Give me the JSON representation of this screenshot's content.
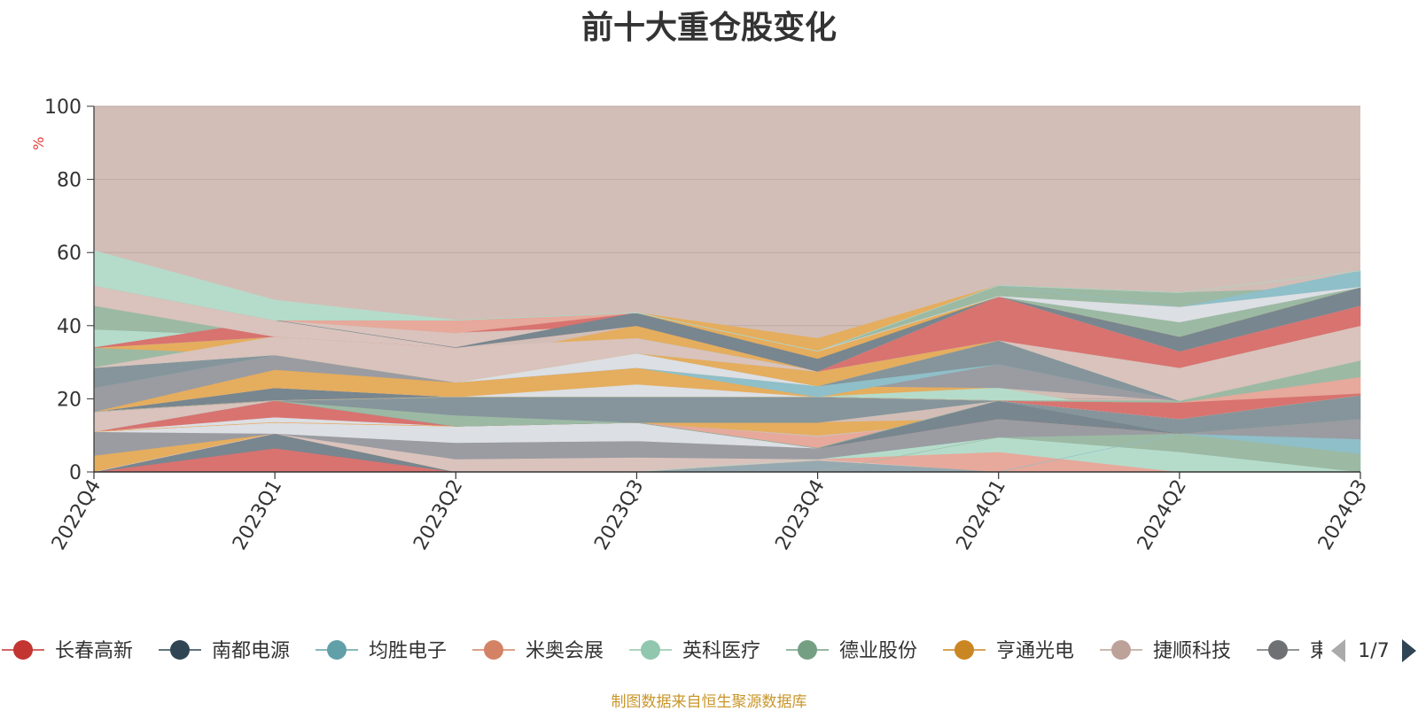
{
  "source_note": "制图数据来自恒生聚源数据库",
  "colors": {
    "background_fill": "#d2beb7",
    "axis": "#333333",
    "grid": "#bfaaa4",
    "ylabel": "#e53935",
    "legend_text": "#333333",
    "pager_active": "#2f4554",
    "pager_inactive": "#aaaaaa"
  },
  "legend": {
    "page": "1/7",
    "items": [
      {
        "name": "长春高新",
        "color": "#c23531"
      },
      {
        "name": "南都电源",
        "color": "#2f4554"
      },
      {
        "name": "均胜电子",
        "color": "#61a0a8"
      },
      {
        "name": "米奥会展",
        "color": "#d48265"
      },
      {
        "name": "英科医疗",
        "color": "#91c7ae"
      },
      {
        "name": "德业股份",
        "color": "#749f83"
      },
      {
        "name": "亨通光电",
        "color": "#ca8622"
      },
      {
        "name": "捷顺科技",
        "color": "#bda29a"
      },
      {
        "name": "東",
        "color": "#6e7074"
      }
    ]
  },
  "chart_data": {
    "type": "area",
    "title": "前十大重仓股变化",
    "ylabel": "%",
    "xlabel": "",
    "categories": [
      "2022Q4",
      "2023Q1",
      "2023Q2",
      "2023Q3",
      "2023Q4",
      "2024Q1",
      "2024Q2",
      "2024Q3"
    ],
    "ylim": [
      0,
      100
    ],
    "yticks": [
      0,
      20,
      40,
      60,
      80,
      100
    ],
    "grid": true,
    "legend_position": "bottom",
    "layers": [
      {
        "color": "#d87370",
        "lower": [
          0,
          0,
          0,
          0,
          0,
          0,
          0,
          0
        ],
        "upper": [
          0,
          6.5,
          0,
          0,
          0,
          0,
          0,
          0
        ]
      },
      {
        "color": "#78868f",
        "lower": [
          0,
          6.5,
          0,
          0,
          0,
          0,
          0,
          0
        ],
        "upper": [
          0,
          10.5,
          0,
          0,
          0,
          0,
          0,
          0
        ]
      },
      {
        "color": "#e5ad5e",
        "lower": [
          0,
          10.5,
          0,
          0,
          0,
          0,
          0,
          0
        ],
        "upper": [
          4.5,
          10.5,
          0,
          0,
          0,
          0,
          0,
          0
        ]
      },
      {
        "color": "#d9c3bc",
        "lower": [
          0,
          10.5,
          0,
          0,
          0,
          0,
          0,
          0
        ],
        "upper": [
          0,
          10.5,
          3.5,
          4,
          3.5,
          0,
          0,
          0
        ]
      },
      {
        "color": "#97a9b0",
        "lower": [
          0,
          0,
          0,
          0,
          0,
          0,
          0,
          0
        ],
        "upper": [
          0,
          0,
          0,
          0,
          3,
          0,
          0,
          0
        ]
      },
      {
        "color": "#e6a99b",
        "lower": [
          0,
          0,
          0,
          0,
          3.5,
          0,
          0,
          0
        ],
        "upper": [
          0,
          0,
          0,
          0,
          3.5,
          5.5,
          0,
          0
        ]
      },
      {
        "color": "#b5dccb",
        "lower": [
          0,
          0,
          0,
          0,
          3.5,
          5.5,
          0,
          0
        ],
        "upper": [
          0,
          0,
          0,
          0,
          3.5,
          9.5,
          10.5,
          0
        ]
      },
      {
        "color": "#9cb9a4",
        "lower": [
          0,
          0,
          0,
          0,
          0,
          9.5,
          5.5,
          0
        ],
        "upper": [
          0,
          0,
          0,
          0,
          0,
          9.5,
          10.5,
          5
        ]
      },
      {
        "color": "#8fbfc8",
        "lower": [
          0,
          0,
          0,
          0,
          0,
          0,
          10.5,
          5
        ],
        "upper": [
          0,
          0,
          0,
          0,
          0,
          0,
          10.5,
          9
        ]
      },
      {
        "color": "#9a9ca2",
        "lower": [
          4.5,
          10.5,
          3.5,
          4,
          3.5,
          9.5,
          10.5,
          9
        ],
        "upper": [
          11,
          10.5,
          8,
          8.5,
          6.5,
          14.5,
          10.5,
          14.5
        ]
      },
      {
        "color": "#dcdfe3",
        "lower": [
          11,
          10.5,
          8,
          8.5,
          6.5,
          14.5,
          10.5,
          14.5
        ],
        "upper": [
          11,
          15,
          12.5,
          13.5,
          6.5,
          14.5,
          10.5,
          14.5
        ]
      },
      {
        "color": "#d87370",
        "lower": [
          11,
          15,
          12.5,
          13.5,
          6.5,
          14.5,
          10.5,
          14.5
        ],
        "upper": [
          11,
          19.5,
          12.5,
          13.5,
          6.5,
          14.5,
          10.5,
          14.5
        ]
      },
      {
        "color": "#e6a99b",
        "lower": [
          11,
          13.5,
          12.5,
          13.5,
          6.5,
          14.5,
          10.5,
          14.5
        ],
        "upper": [
          11,
          13.5,
          12.5,
          13.5,
          9.5,
          14.5,
          10.5,
          14.5
        ]
      },
      {
        "color": "#e5ad5e",
        "lower": [
          11,
          13.5,
          12.5,
          13.5,
          10,
          14.5,
          10.5,
          14.5
        ],
        "upper": [
          11,
          13.5,
          12.5,
          13.5,
          13.5,
          14.5,
          10.5,
          14.5
        ]
      },
      {
        "color": "#78868f",
        "lower": [
          11,
          19.5,
          12.5,
          13.5,
          6.5,
          14.5,
          10.5,
          14.5
        ],
        "upper": [
          16.5,
          19.5,
          12.5,
          13.5,
          6.5,
          19.5,
          10.5,
          14.5
        ]
      },
      {
        "color": "#9cb9a4",
        "lower": [
          16.5,
          19.5,
          12.5,
          13.5,
          6.5,
          19.5,
          10.5,
          14.5
        ],
        "upper": [
          16.5,
          19.5,
          15.5,
          13.5,
          6.5,
          19.5,
          10.5,
          14.5
        ]
      },
      {
        "color": "#85959b",
        "lower": [
          16.5,
          19.5,
          15.5,
          13.5,
          13.5,
          19.5,
          10.5,
          14.5
        ],
        "upper": [
          16.5,
          19.5,
          20.5,
          20.5,
          20.5,
          19.5,
          14.5,
          21
        ]
      },
      {
        "color": "#d9c3bc",
        "lower": [
          11,
          19.5,
          20.5,
          20.5,
          20.5,
          19.5,
          14.5,
          21
        ],
        "upper": [
          16.5,
          19.5,
          20.5,
          20.5,
          20.5,
          19.5,
          14.5,
          21
        ]
      },
      {
        "color": "#78868f",
        "lower": [
          16.5,
          19.5,
          20.5,
          20.5,
          20.5,
          19.5,
          14.5,
          21
        ],
        "upper": [
          16.5,
          23,
          20.5,
          20.5,
          20.5,
          19.5,
          14.5,
          21
        ]
      },
      {
        "color": "#dcdfe3",
        "lower": [
          16.5,
          23,
          20.5,
          20.5,
          20.5,
          19.5,
          14.5,
          21
        ],
        "upper": [
          16.5,
          23,
          20.5,
          24,
          20.5,
          19.5,
          14.5,
          21
        ]
      },
      {
        "color": "#e5ad5e",
        "lower": [
          16.5,
          23,
          20.5,
          24,
          20.5,
          23,
          14.5,
          21
        ],
        "upper": [
          16.5,
          28,
          24.5,
          28.5,
          23.5,
          23,
          14.5,
          21
        ]
      },
      {
        "color": "#b5dccb",
        "lower": [
          16.5,
          19.5,
          20.5,
          20.5,
          20.5,
          19.5,
          14.5,
          21
        ],
        "upper": [
          16.5,
          19.5,
          20.5,
          20.5,
          20.5,
          23,
          14.5,
          21
        ]
      },
      {
        "color": "#d87370",
        "lower": [
          16.5,
          19.5,
          20.5,
          20.5,
          20.5,
          19.5,
          14.5,
          21
        ],
        "upper": [
          16.5,
          19.5,
          20.5,
          20.5,
          20.5,
          19.5,
          19,
          21
        ]
      },
      {
        "color": "#d87370",
        "lower": [
          16.5,
          19.5,
          20.5,
          20.5,
          20.5,
          19.5,
          19,
          21
        ],
        "upper": [
          16.5,
          19.5,
          20.5,
          20.5,
          20.5,
          19.5,
          19,
          21.5
        ]
      },
      {
        "color": "#e6a99b",
        "lower": [
          16.5,
          19.5,
          20.5,
          20.5,
          20.5,
          19.5,
          19,
          21.5
        ],
        "upper": [
          16.5,
          19.5,
          20.5,
          20.5,
          20.5,
          19.5,
          19,
          26
        ]
      },
      {
        "color": "#9cb9a4",
        "lower": [
          16.5,
          19.5,
          20.5,
          20.5,
          20.5,
          19.5,
          19,
          26
        ],
        "upper": [
          16.5,
          19.5,
          20.5,
          20.5,
          20.5,
          19.5,
          19.5,
          30.5
        ]
      },
      {
        "color": "#9a9ca2",
        "lower": [
          16.5,
          28,
          24.5,
          28.5,
          23.5,
          23,
          19.5,
          30.5
        ],
        "upper": [
          23,
          32,
          24.5,
          28.5,
          23.5,
          29.5,
          19.5,
          30.5
        ]
      },
      {
        "color": "#8fbfc8",
        "lower": [
          23,
          32,
          24.5,
          28.5,
          20.5,
          29.5,
          19.5,
          30.5
        ],
        "upper": [
          23,
          32,
          24.5,
          32.5,
          23.5,
          29.5,
          19.5,
          30.5
        ]
      },
      {
        "color": "#85959b",
        "lower": [
          23,
          32,
          24.5,
          28.5,
          23.5,
          29.5,
          19.5,
          30.5
        ],
        "upper": [
          28.5,
          32,
          24.5,
          28.5,
          23.5,
          36,
          19.5,
          30.5
        ]
      },
      {
        "color": "#dcdfe3",
        "lower": [
          28.5,
          32,
          24.5,
          28.5,
          23.5,
          36,
          19.5,
          30.5
        ],
        "upper": [
          28.5,
          32,
          24.5,
          32.5,
          23.5,
          36,
          19.5,
          30.5
        ]
      },
      {
        "color": "#9cb9a4",
        "lower": [
          28.5,
          32,
          24.5,
          32.5,
          23.5,
          36,
          19.5,
          30.5
        ],
        "upper": [
          34,
          37,
          24.5,
          32.5,
          23.5,
          36,
          19.5,
          30.5
        ]
      },
      {
        "color": "#e5ad5e",
        "lower": [
          34,
          32,
          24.5,
          32.5,
          23.5,
          36,
          19.5,
          30.5
        ],
        "upper": [
          34,
          37,
          30,
          40,
          27.5,
          36,
          19.5,
          30.5
        ]
      },
      {
        "color": "#8fbfc8",
        "lower": [
          34,
          37,
          30,
          32.5,
          27.5,
          36,
          19.5,
          30.5
        ],
        "upper": [
          34,
          37,
          30,
          36.5,
          27.5,
          36,
          19.5,
          30.5
        ]
      },
      {
        "color": "#b5dccb",
        "lower": [
          34,
          37,
          30,
          36.5,
          27.5,
          36,
          19.5,
          30.5
        ],
        "upper": [
          39,
          37,
          30,
          36.5,
          27.5,
          39,
          19.5,
          30.5
        ]
      },
      {
        "color": "#9cb9a4",
        "lower": [
          39,
          37,
          30,
          36.5,
          27.5,
          39,
          19.5,
          30.5
        ],
        "upper": [
          45.5,
          37,
          30,
          36.5,
          27.5,
          39,
          19.5,
          30.5
        ]
      },
      {
        "color": "#d9c3bc",
        "lower": [
          28.5,
          32,
          24.5,
          32.5,
          27.5,
          36,
          19.5,
          30.5
        ],
        "upper": [
          28.5,
          37,
          34,
          36.5,
          27.5,
          48,
          28.5,
          40
        ]
      },
      {
        "color": "#d87370",
        "lower": [
          34,
          37,
          34,
          40,
          27.5,
          36,
          28.5,
          40
        ],
        "upper": [
          34,
          41.5,
          38,
          43.5,
          27.5,
          48,
          33,
          45.5
        ]
      },
      {
        "color": "#d9c3bc",
        "lower": [
          45.5,
          37,
          34,
          40,
          27.5,
          48,
          33,
          45.5
        ],
        "upper": [
          51,
          41.5,
          38,
          40,
          27.5,
          48,
          33,
          45.5
        ]
      },
      {
        "color": "#e6a99b",
        "lower": [
          51,
          41.5,
          38,
          43.5,
          27.5,
          48,
          33,
          45.5
        ],
        "upper": [
          51,
          41.5,
          41.5,
          43.5,
          27.5,
          48,
          33,
          50.5
        ]
      },
      {
        "color": "#78868f",
        "lower": [
          51,
          41.5,
          34,
          40,
          27.5,
          48,
          33,
          45.5
        ],
        "upper": [
          51,
          41.5,
          34,
          43.5,
          31,
          48,
          37,
          50.5
        ]
      },
      {
        "color": "#e5ad5e",
        "lower": [
          51,
          41.5,
          41.5,
          43.5,
          31,
          48,
          37,
          50.5
        ],
        "upper": [
          51,
          41.5,
          41.5,
          43.5,
          36.5,
          51,
          37,
          50.5
        ]
      },
      {
        "color": "#9cb9a4",
        "lower": [
          51,
          41.5,
          41.5,
          43.5,
          33,
          48,
          37,
          50.5
        ],
        "upper": [
          51,
          41.5,
          41.5,
          43.5,
          33,
          51,
          49,
          50.5
        ]
      },
      {
        "color": "#8fbfc8",
        "lower": [
          51,
          41.5,
          41.5,
          43.5,
          33,
          51,
          45,
          50.5
        ],
        "upper": [
          51,
          41.5,
          41.5,
          43.5,
          33,
          51,
          45,
          55
        ]
      },
      {
        "color": "#dcdfe3",
        "lower": [
          51,
          41.5,
          41.5,
          43.5,
          33,
          48,
          41,
          50.5
        ],
        "upper": [
          51,
          41.5,
          41.5,
          43.5,
          33,
          48,
          45,
          50.5
        ]
      },
      {
        "color": "#9cb9a4",
        "lower": [
          51,
          41.5,
          41.5,
          43.5,
          33,
          51,
          49,
          55
        ],
        "upper": [
          51,
          41.5,
          41.5,
          43.5,
          33,
          51,
          49,
          55
        ]
      },
      {
        "color": "#b5dccb",
        "lower": [
          51,
          41.5,
          41.5,
          43.5,
          33,
          51,
          49,
          55
        ],
        "upper": [
          60.5,
          47,
          41.5,
          43.5,
          33,
          51,
          49,
          55
        ]
      }
    ]
  }
}
